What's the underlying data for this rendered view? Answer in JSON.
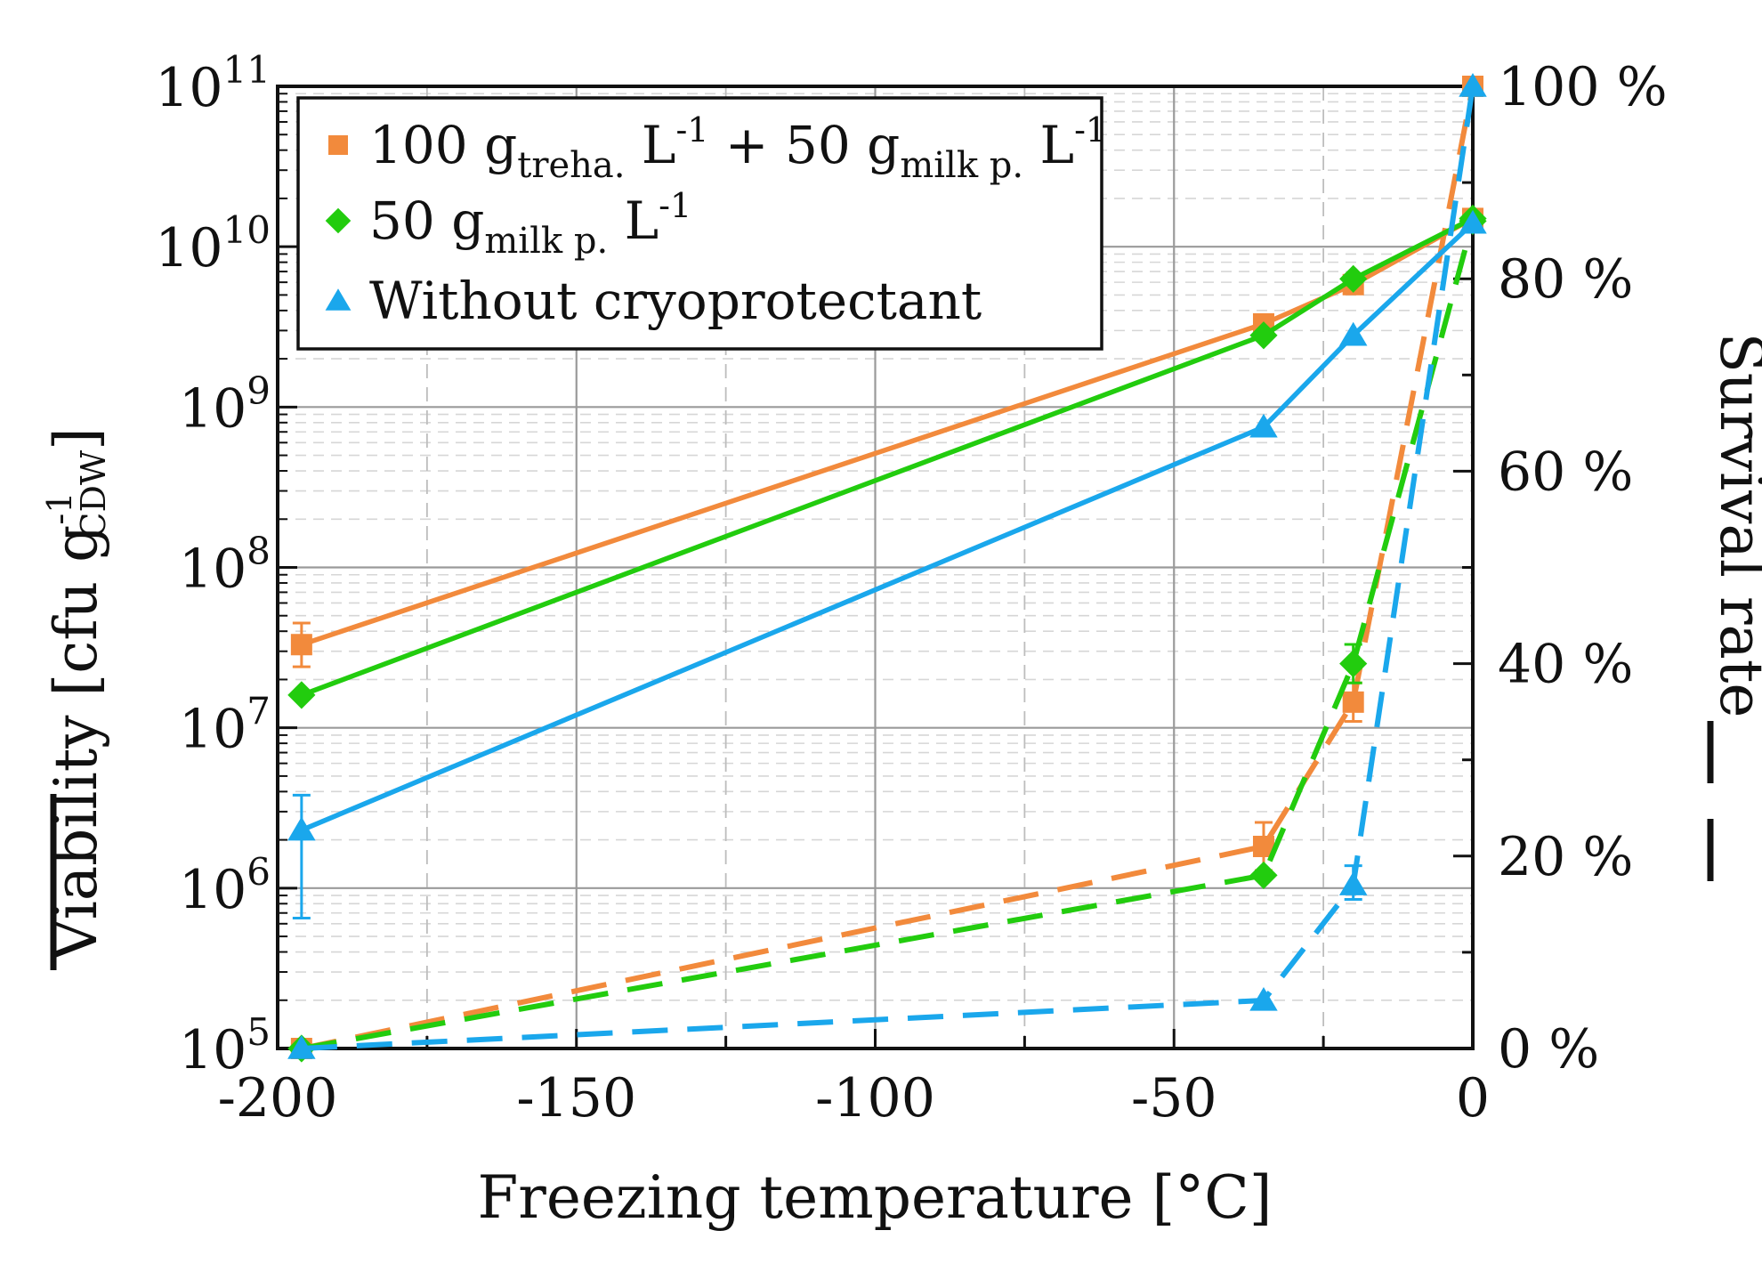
{
  "chart_data": {
    "type": "line",
    "title": "",
    "xlabel": "Freezing temperature [°C]",
    "ylabel": {
      "main": "Viability [cfu g",
      "sup": "-1",
      "sub": "CDW",
      "close": "]",
      "line_key": "—"
    },
    "y2label": {
      "main": "Survival rate",
      "line_key": "– –"
    },
    "xlim": [
      -200,
      0
    ],
    "ylim": [
      100000,
      100000000000
    ],
    "yscale": "log",
    "y2lim": [
      0,
      100
    ],
    "xticks": [
      {
        "value": -200,
        "label": "-200"
      },
      {
        "value": -150,
        "label": "-150"
      },
      {
        "value": -100,
        "label": "-100"
      },
      {
        "value": -50,
        "label": "-50"
      },
      {
        "value": 0,
        "label": "0"
      }
    ],
    "yticks": [
      {
        "exp": 5,
        "base": "10",
        "sup": "5"
      },
      {
        "exp": 6,
        "base": "10",
        "sup": "6"
      },
      {
        "exp": 7,
        "base": "10",
        "sup": "7"
      },
      {
        "exp": 8,
        "base": "10",
        "sup": "8"
      },
      {
        "exp": 9,
        "base": "10",
        "sup": "9"
      },
      {
        "exp": 10,
        "base": "10",
        "sup": "10"
      },
      {
        "exp": 11,
        "base": "10",
        "sup": "11"
      }
    ],
    "y2ticks": [
      {
        "value": 0,
        "label": "0 %"
      },
      {
        "value": 20,
        "label": "20 %"
      },
      {
        "value": 40,
        "label": "40 %"
      },
      {
        "value": 60,
        "label": "60 %"
      },
      {
        "value": 80,
        "label": "80 %"
      },
      {
        "value": 100,
        "label": "100 %"
      }
    ],
    "grid": true,
    "legend_position": "top-left",
    "series": [
      {
        "name": "100 g treha. L-1 + 50 g milk p. L-1",
        "legend_parts": [
          {
            "t": "100 g",
            "s": "n"
          },
          {
            "t": "treha.",
            "s": "sub"
          },
          {
            "t": " L",
            "s": "n"
          },
          {
            "t": "-1",
            "s": "sup"
          },
          {
            "t": " + 50 g",
            "s": "n"
          },
          {
            "t": "milk p.",
            "s": "sub"
          },
          {
            "t": " L",
            "s": "n"
          },
          {
            "t": "-1",
            "s": "sup"
          }
        ],
        "color": "#f28a3c",
        "marker": "square",
        "x": [
          -196,
          -35,
          -20,
          0
        ],
        "viability": [
          33000000,
          3300000000,
          5800000000,
          15000000000
        ],
        "viability_err": [
          [
            24000000,
            45000000
          ],
          null,
          null,
          null
        ],
        "survival": [
          0,
          21,
          36,
          100
        ],
        "survival_err": [
          null,
          [
            18.5,
            23.5
          ],
          [
            34,
            38
          ],
          null
        ]
      },
      {
        "name": "50 g milk p. L-1",
        "legend_parts": [
          {
            "t": "50 g",
            "s": "n"
          },
          {
            "t": "milk p.",
            "s": "sub"
          },
          {
            "t": " L",
            "s": "n"
          },
          {
            "t": "-1",
            "s": "sup"
          }
        ],
        "color": "#22cc0e",
        "marker": "diamond",
        "x": [
          -196,
          -35,
          -20,
          0
        ],
        "viability": [
          16000000,
          2800000000,
          6300000000,
          15000000000
        ],
        "viability_err": [
          null,
          null,
          null,
          null
        ],
        "survival": [
          0,
          18,
          40,
          86
        ],
        "survival_err": [
          null,
          null,
          [
            38,
            42
          ],
          null
        ]
      },
      {
        "name": "Without cryoprotectant",
        "legend_parts": [
          {
            "t": "Without cryoprotectant",
            "s": "n"
          }
        ],
        "color": "#1aa7ec",
        "marker": "triangle",
        "x": [
          -196,
          -35,
          -20,
          0
        ],
        "viability": [
          2300000,
          750000000,
          2800000000,
          14000000000
        ],
        "viability_err": [
          [
            650000,
            3800000
          ],
          null,
          null,
          null
        ],
        "survival": [
          0,
          5,
          17,
          100
        ],
        "survival_err": [
          null,
          null,
          [
            15.5,
            19
          ],
          null
        ]
      }
    ]
  }
}
